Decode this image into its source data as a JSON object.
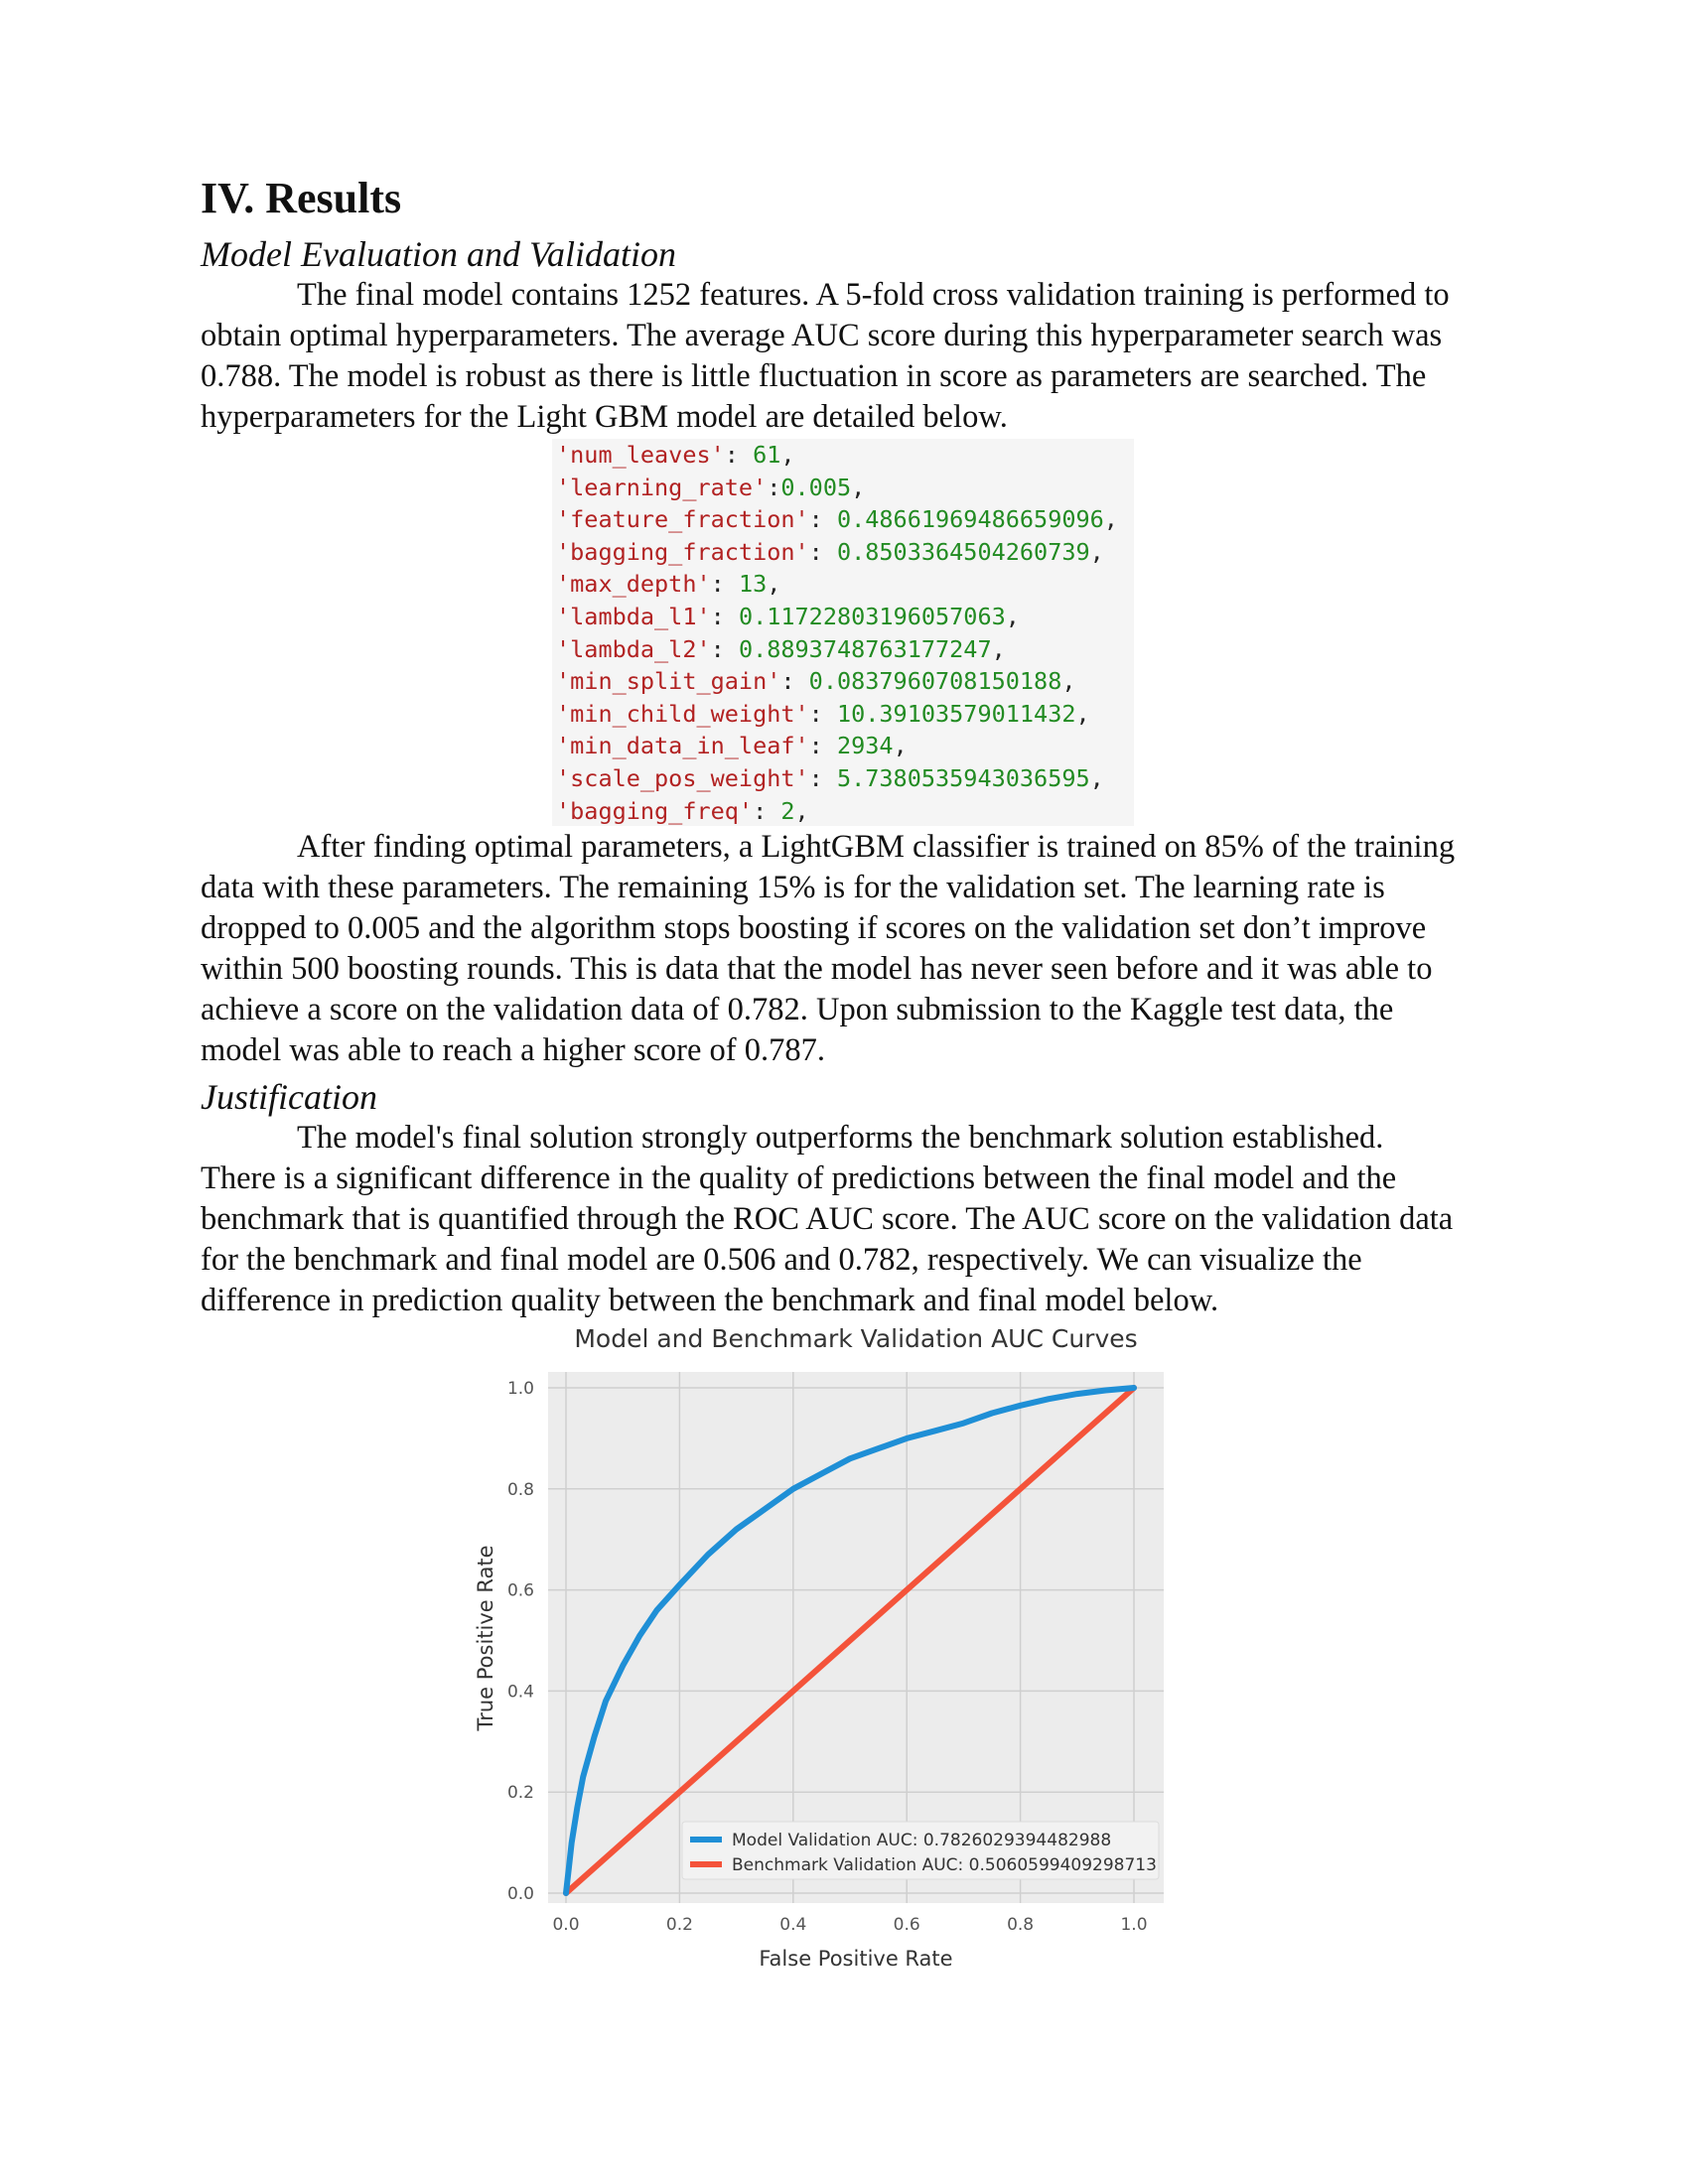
{
  "section_title": "IV. Results",
  "subsection1": "Model Evaluation and Validation",
  "para1_lines": [
    "The final model contains 1252 features. A 5-fold cross validation training is performed to",
    "obtain optimal hyperparameters. The average AUC score during this hyperparameter search was",
    "0.788. The model is robust as there is little fluctuation in score as parameters are searched. The",
    "hyperparameters for the Light GBM model are detailed below."
  ],
  "code_lines": [
    {
      "key": "'num_leaves'",
      "sep": ": ",
      "val": "61",
      "end": ","
    },
    {
      "key": "'learning_rate'",
      "sep": ":",
      "val": "0.005",
      "end": ","
    },
    {
      "key": "'feature_fraction'",
      "sep": ": ",
      "val": "0.48661969486659096",
      "end": ","
    },
    {
      "key": "'bagging_fraction'",
      "sep": ": ",
      "val": "0.8503364504260739",
      "end": ","
    },
    {
      "key": "'max_depth'",
      "sep": ": ",
      "val": "13",
      "end": ","
    },
    {
      "key": "'lambda_l1'",
      "sep": ": ",
      "val": "0.11722803196057063",
      "end": ","
    },
    {
      "key": "'lambda_l2'",
      "sep": ": ",
      "val": "0.8893748763177247",
      "end": ","
    },
    {
      "key": "'min_split_gain'",
      "sep": ": ",
      "val": "0.0837960708150188",
      "end": ","
    },
    {
      "key": "'min_child_weight'",
      "sep": ": ",
      "val": "10.39103579011432",
      "end": ","
    },
    {
      "key": "'min_data_in_leaf'",
      "sep": ": ",
      "val": "2934",
      "end": ","
    },
    {
      "key": "'scale_pos_weight'",
      "sep": ": ",
      "val": "5.7380535943036595",
      "end": ","
    },
    {
      "key": "'bagging_freq'",
      "sep": ": ",
      "val": "2",
      "end": ","
    }
  ],
  "para2_lines": [
    "After finding optimal parameters, a LightGBM classifier is trained on 85% of the training",
    "data with these parameters. The remaining 15% is for the validation set. The learning rate is",
    "dropped to 0.005 and the algorithm stops boosting if scores on the validation set don’t improve",
    "within 500 boosting rounds. This is data that the model has never seen before and it was able to",
    "achieve a score on the validation data of 0.782. Upon submission to the Kaggle test data, the",
    "model was able to reach a higher score of 0.787."
  ],
  "subsection2": "Justification",
  "para3_lines": [
    "The model's final solution strongly outperforms the benchmark solution established.",
    "There is a significant difference in the quality of predictions between the final model and the",
    "benchmark that is quantified through the ROC AUC score. The AUC score on the validation data",
    "for the benchmark and final model are 0.506 and 0.782, respectively. We can visualize the",
    "difference in prediction quality between the benchmark and final model below."
  ],
  "colors": {
    "code_key": "#b22222",
    "code_value": "#228b22",
    "model_line": "#1f8fd6",
    "benchmark_line": "#f4533a",
    "plot_bg": "#ececec"
  },
  "chart_data": {
    "type": "line",
    "title": "Model and Benchmark Validation AUC Curves",
    "xlabel": "False Positive Rate",
    "ylabel": "True Positive Rate",
    "xlim": [
      0,
      1
    ],
    "ylim": [
      0,
      1
    ],
    "xticks": [
      "0.0",
      "0.2",
      "0.4",
      "0.6",
      "0.8",
      "1.0"
    ],
    "yticks": [
      "0.0",
      "0.2",
      "0.4",
      "0.6",
      "0.8",
      "1.0"
    ],
    "grid": true,
    "legend_position": "bottom-right",
    "series": [
      {
        "name": "Model Validation AUC: 0.7826029394482988",
        "x": [
          0,
          0.005,
          0.01,
          0.02,
          0.03,
          0.05,
          0.07,
          0.1,
          0.13,
          0.16,
          0.2,
          0.25,
          0.3,
          0.35,
          0.4,
          0.45,
          0.5,
          0.55,
          0.6,
          0.65,
          0.7,
          0.75,
          0.8,
          0.85,
          0.9,
          0.95,
          1.0
        ],
        "y": [
          0,
          0.05,
          0.1,
          0.17,
          0.23,
          0.31,
          0.38,
          0.45,
          0.51,
          0.56,
          0.61,
          0.67,
          0.72,
          0.76,
          0.8,
          0.83,
          0.86,
          0.88,
          0.9,
          0.915,
          0.93,
          0.95,
          0.965,
          0.978,
          0.988,
          0.995,
          1.0
        ]
      },
      {
        "name": "Benchmark Validation AUC: 0.5060599409298713",
        "x": [
          0,
          1
        ],
        "y": [
          0,
          1
        ]
      }
    ]
  }
}
